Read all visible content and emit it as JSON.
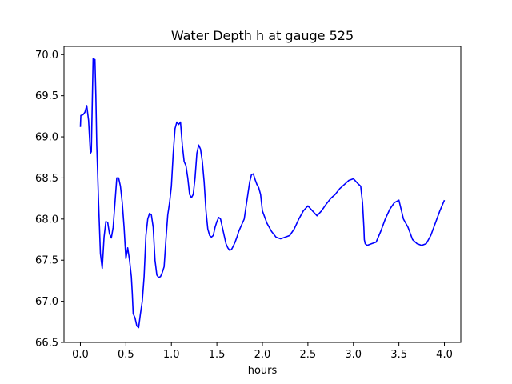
{
  "chart_data": {
    "type": "line",
    "title": "Water Depth h at gauge 525",
    "xlabel": "hours",
    "ylabel": "",
    "xlim": [
      -0.18,
      4.18
    ],
    "ylim": [
      66.5,
      70.1
    ],
    "xticks": [
      0.0,
      0.5,
      1.0,
      1.5,
      2.0,
      2.5,
      3.0,
      3.5,
      4.0
    ],
    "xtick_labels": [
      "0.0",
      "0.5",
      "1.0",
      "1.5",
      "2.0",
      "2.5",
      "3.0",
      "3.5",
      "4.0"
    ],
    "yticks": [
      66.5,
      67.0,
      67.5,
      68.0,
      68.5,
      69.0,
      69.5,
      70.0
    ],
    "ytick_labels": [
      "66.5",
      "67.0",
      "67.5",
      "68.0",
      "68.5",
      "69.0",
      "69.5",
      "70.0"
    ],
    "grid": false,
    "series": [
      {
        "color": "#0000ff",
        "x": [
          0.0,
          0.005,
          0.03,
          0.05,
          0.07,
          0.09,
          0.11,
          0.12,
          0.14,
          0.16,
          0.17,
          0.18,
          0.2,
          0.22,
          0.24,
          0.26,
          0.28,
          0.3,
          0.32,
          0.34,
          0.36,
          0.38,
          0.4,
          0.42,
          0.44,
          0.46,
          0.48,
          0.5,
          0.52,
          0.54,
          0.56,
          0.57,
          0.58,
          0.6,
          0.62,
          0.64,
          0.66,
          0.68,
          0.7,
          0.72,
          0.74,
          0.76,
          0.78,
          0.8,
          0.82,
          0.84,
          0.86,
          0.88,
          0.9,
          0.92,
          0.94,
          0.96,
          0.98,
          1.0,
          1.02,
          1.04,
          1.06,
          1.08,
          1.1,
          1.12,
          1.14,
          1.16,
          1.18,
          1.2,
          1.22,
          1.24,
          1.26,
          1.28,
          1.3,
          1.32,
          1.34,
          1.36,
          1.38,
          1.4,
          1.42,
          1.44,
          1.46,
          1.48,
          1.5,
          1.52,
          1.54,
          1.56,
          1.58,
          1.6,
          1.62,
          1.64,
          1.66,
          1.68,
          1.7,
          1.72,
          1.74,
          1.76,
          1.78,
          1.8,
          1.82,
          1.84,
          1.86,
          1.88,
          1.9,
          1.92,
          1.94,
          1.96,
          1.98,
          2.0,
          2.05,
          2.1,
          2.15,
          2.2,
          2.25,
          2.3,
          2.35,
          2.4,
          2.45,
          2.5,
          2.55,
          2.6,
          2.65,
          2.7,
          2.75,
          2.8,
          2.85,
          2.9,
          2.95,
          3.0,
          3.05,
          3.08,
          3.1,
          3.11,
          3.115,
          3.12,
          3.13,
          3.15,
          3.2,
          3.25,
          3.3,
          3.35,
          3.4,
          3.45,
          3.5,
          3.55,
          3.6,
          3.65,
          3.7,
          3.75,
          3.8,
          3.85,
          3.9,
          3.95,
          4.0
        ],
        "y": [
          69.12,
          69.26,
          69.27,
          69.3,
          69.38,
          69.2,
          68.8,
          68.82,
          69.95,
          69.94,
          69.5,
          68.9,
          68.2,
          67.58,
          67.4,
          67.78,
          67.97,
          67.96,
          67.82,
          67.77,
          67.9,
          68.2,
          68.5,
          68.5,
          68.4,
          68.2,
          67.9,
          67.52,
          67.65,
          67.5,
          67.3,
          67.1,
          66.85,
          66.8,
          66.7,
          66.68,
          66.85,
          67.0,
          67.3,
          67.8,
          68.0,
          68.07,
          68.05,
          67.9,
          67.5,
          67.32,
          67.29,
          67.3,
          67.35,
          67.42,
          67.75,
          68.05,
          68.2,
          68.4,
          68.8,
          69.1,
          69.18,
          69.15,
          69.18,
          68.9,
          68.7,
          68.65,
          68.5,
          68.3,
          68.26,
          68.3,
          68.5,
          68.8,
          68.9,
          68.85,
          68.7,
          68.45,
          68.1,
          67.88,
          67.8,
          67.78,
          67.8,
          67.9,
          67.97,
          68.02,
          68.0,
          67.9,
          67.8,
          67.7,
          67.65,
          67.62,
          67.63,
          67.67,
          67.72,
          67.78,
          67.85,
          67.9,
          67.95,
          68.0,
          68.15,
          68.3,
          68.45,
          68.54,
          68.55,
          68.48,
          68.42,
          68.38,
          68.3,
          68.1,
          67.95,
          67.85,
          67.78,
          67.76,
          67.78,
          67.8,
          67.88,
          68.0,
          68.1,
          68.16,
          68.1,
          68.04,
          68.1,
          68.18,
          68.25,
          68.3,
          68.37,
          68.42,
          68.47,
          68.49,
          68.43,
          68.4,
          68.2,
          68.0,
          67.9,
          67.75,
          67.7,
          67.68,
          67.7,
          67.72,
          67.85,
          68.0,
          68.12,
          68.2,
          68.23,
          68.0,
          67.9,
          67.75,
          67.7,
          67.68,
          67.7,
          67.8,
          67.95,
          68.1,
          68.23
        ]
      }
    ]
  }
}
